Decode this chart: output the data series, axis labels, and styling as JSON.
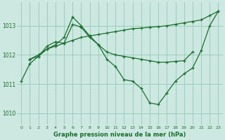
{
  "bg_color": "#cce8e0",
  "grid_color": "#99ccbb",
  "line_color": "#1a6e2e",
  "marker": "+",
  "xlabel": "Graphe pression niveau de la mer (hPa)",
  "xlim": [
    -0.5,
    23.5
  ],
  "ylim": [
    1009.6,
    1013.8
  ],
  "yticks": [
    1010,
    1011,
    1012,
    1013
  ],
  "xticks": [
    0,
    1,
    2,
    3,
    4,
    5,
    6,
    7,
    8,
    9,
    10,
    11,
    12,
    13,
    14,
    15,
    16,
    17,
    18,
    19,
    20,
    21,
    22,
    23
  ],
  "series": [
    {
      "x": [
        1,
        2,
        3,
        4,
        5,
        6,
        7,
        8,
        9,
        10,
        11,
        12,
        13,
        14,
        15,
        16,
        17,
        18,
        19,
        20,
        21,
        22,
        23
      ],
      "y": [
        1011.85,
        1012.0,
        1012.2,
        1012.3,
        1012.4,
        1012.5,
        1012.6,
        1012.65,
        1012.7,
        1012.75,
        1012.8,
        1012.85,
        1012.9,
        1012.92,
        1012.95,
        1012.97,
        1013.0,
        1013.05,
        1013.1,
        1013.15,
        1013.2,
        1013.35,
        1013.5
      ]
    },
    {
      "x": [
        0,
        1,
        2,
        3,
        4,
        5,
        6,
        7,
        8,
        9,
        10,
        11,
        12,
        13,
        14,
        15,
        16,
        17,
        18,
        19,
        20,
        21,
        22,
        23
      ],
      "y": [
        1011.1,
        1011.7,
        1011.95,
        1012.2,
        1012.35,
        1012.6,
        1013.3,
        1013.0,
        1012.65,
        1012.35,
        1011.85,
        1011.6,
        1011.15,
        1011.1,
        1010.85,
        1010.35,
        1010.3,
        1010.7,
        1011.1,
        1011.35,
        1011.55,
        1012.15,
        1013.0,
        1013.5
      ]
    },
    {
      "x": [
        1,
        2,
        3,
        4,
        5,
        6,
        7,
        8,
        9,
        10,
        11,
        12,
        13,
        14,
        15,
        16,
        17,
        18,
        19,
        20
      ],
      "y": [
        1011.85,
        1011.95,
        1012.3,
        1012.45,
        1012.4,
        1013.05,
        1012.95,
        1012.6,
        1012.35,
        1012.1,
        1012.0,
        1011.95,
        1011.9,
        1011.85,
        1011.8,
        1011.75,
        1011.75,
        1011.78,
        1011.8,
        1012.1
      ]
    }
  ]
}
